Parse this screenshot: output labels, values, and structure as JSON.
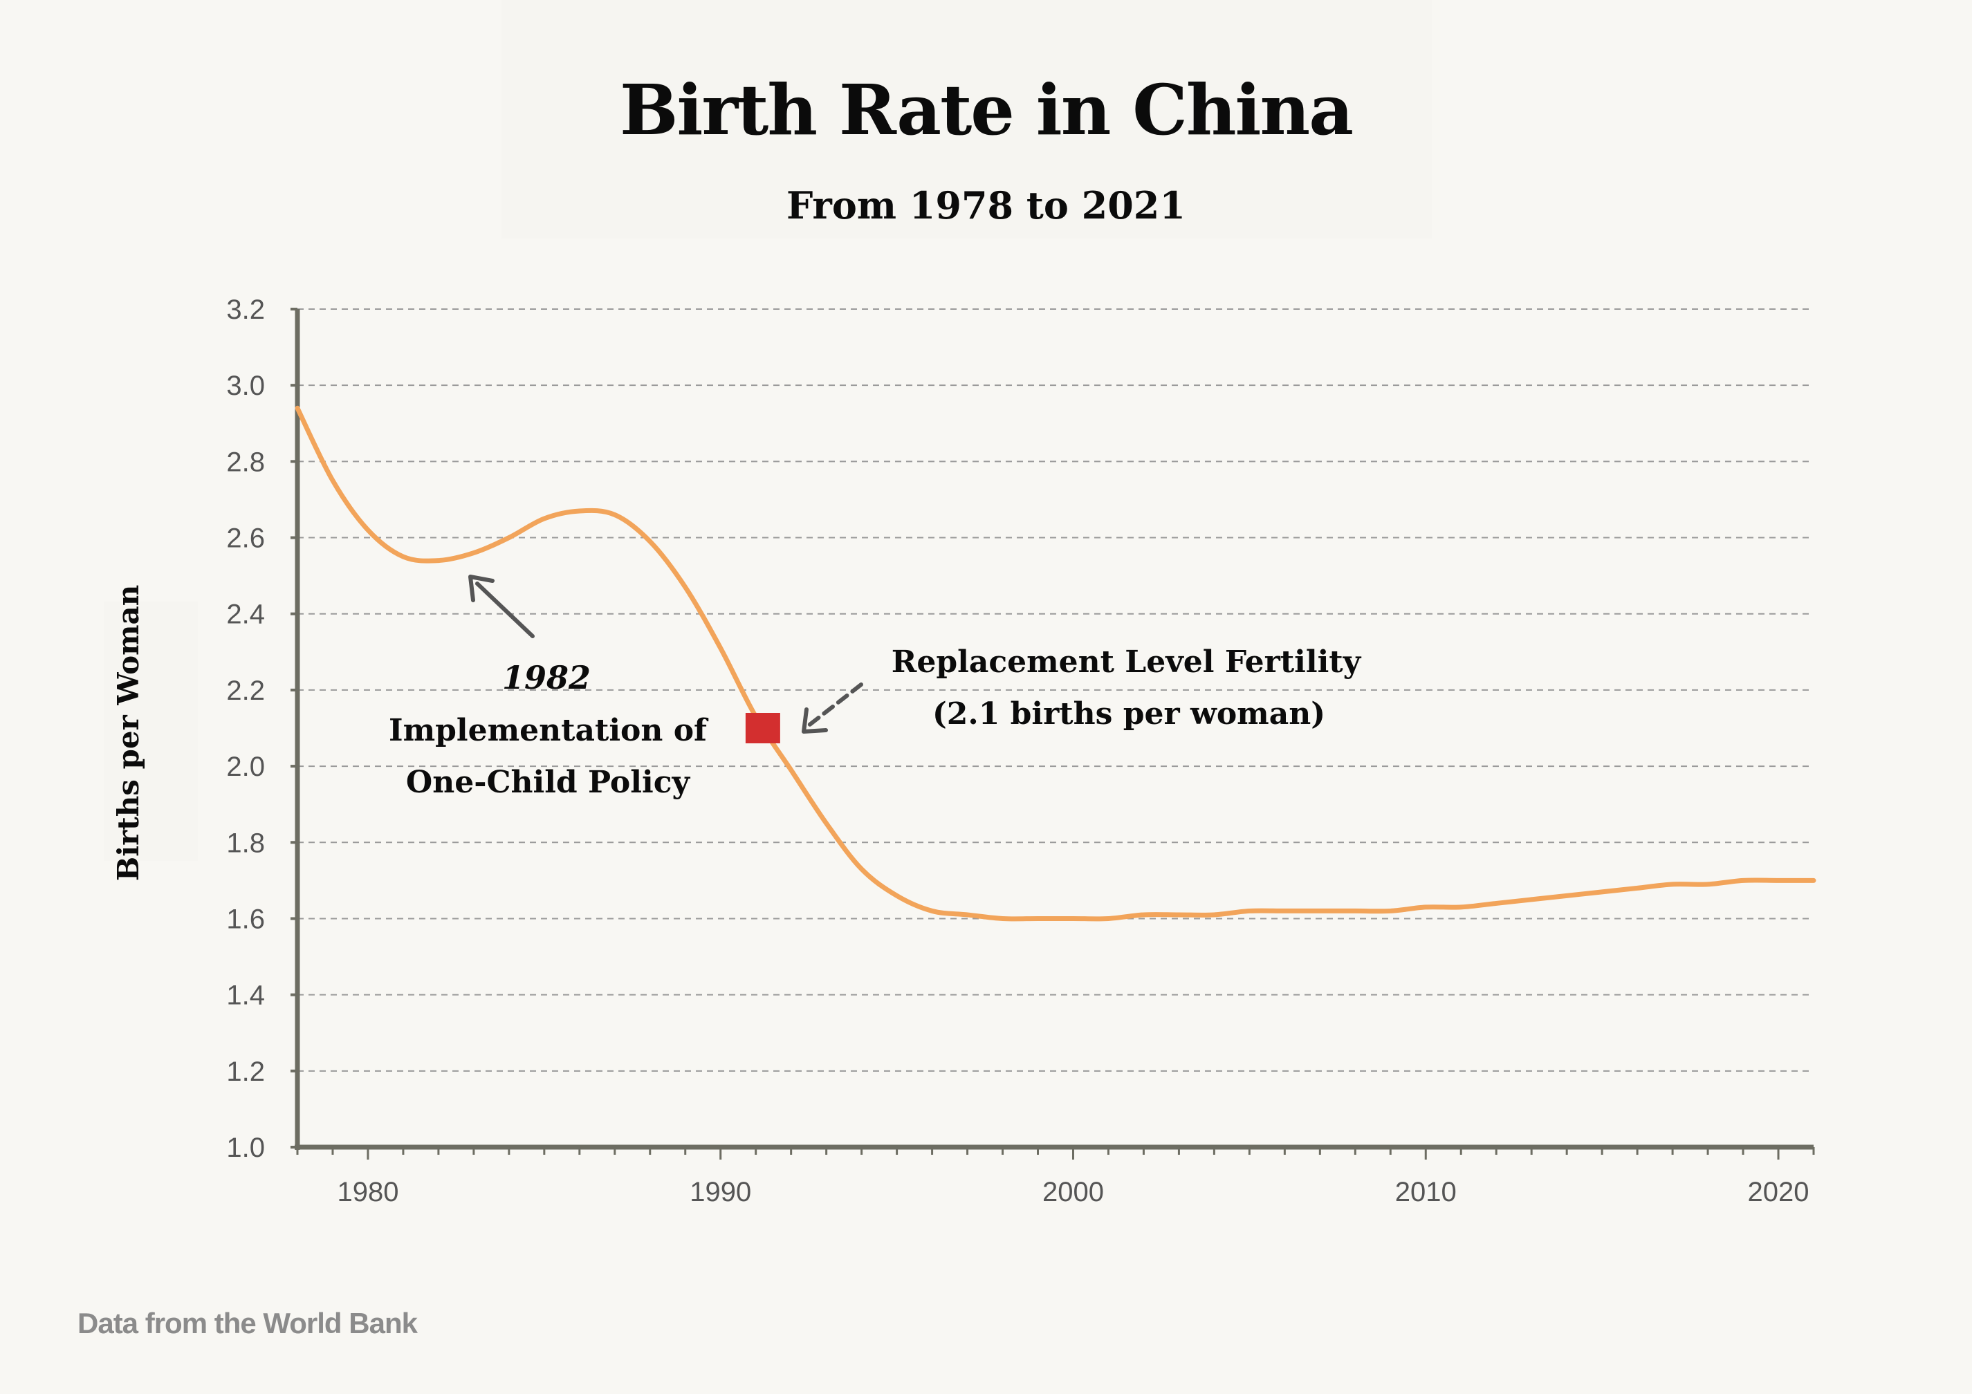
{
  "chart_data": {
    "type": "line",
    "title": "Birth Rate in China",
    "subtitle": "From 1978 to 2021",
    "ylabel": "Births per Woman",
    "xlabel": "",
    "xlim": [
      1978,
      2021
    ],
    "ylim": [
      1.0,
      3.2
    ],
    "y_ticks": [
      "1.0",
      "1.2",
      "1.4",
      "1.6",
      "1.8",
      "2.0",
      "2.2",
      "2.4",
      "2.6",
      "2.8",
      "3.0",
      "3.2"
    ],
    "x_ticks": [
      "1980",
      "1990",
      "2000",
      "2010",
      "2020"
    ],
    "grid": true,
    "line_color": "#f2a45a",
    "marker_color": "#d32f2f",
    "series": [
      {
        "x": [
          1978,
          1979,
          1980,
          1981,
          1982,
          1983,
          1984,
          1985,
          1986,
          1987,
          1988,
          1989,
          1990,
          1991,
          1992,
          1993,
          1994,
          1995,
          1996,
          1997,
          1998,
          1999,
          2000,
          2001,
          2002,
          2003,
          2004,
          2005,
          2006,
          2007,
          2008,
          2009,
          2010,
          2011,
          2012,
          2013,
          2014,
          2015,
          2016,
          2017,
          2018,
          2019,
          2020,
          2021
        ],
        "y": [
          2.94,
          2.75,
          2.62,
          2.55,
          2.54,
          2.56,
          2.6,
          2.65,
          2.67,
          2.66,
          2.59,
          2.47,
          2.31,
          2.13,
          1.99,
          1.85,
          1.73,
          1.66,
          1.62,
          1.61,
          1.6,
          1.6,
          1.6,
          1.6,
          1.61,
          1.61,
          1.61,
          1.62,
          1.62,
          1.62,
          1.62,
          1.62,
          1.63,
          1.63,
          1.64,
          1.65,
          1.66,
          1.67,
          1.68,
          1.69,
          1.69,
          1.7,
          1.7,
          1.7
        ]
      }
    ],
    "annotations": [
      {
        "year_label": "1982",
        "lines": [
          "Implementation of",
          "One-Child Policy"
        ],
        "x": 1983,
        "y": 2.52
      },
      {
        "lines": [
          "Replacement Level Fertility",
          "(2.1 births per woman)"
        ],
        "x": 1991.2,
        "y": 2.1
      }
    ]
  },
  "footer": {
    "source": "Data from the World Bank"
  }
}
